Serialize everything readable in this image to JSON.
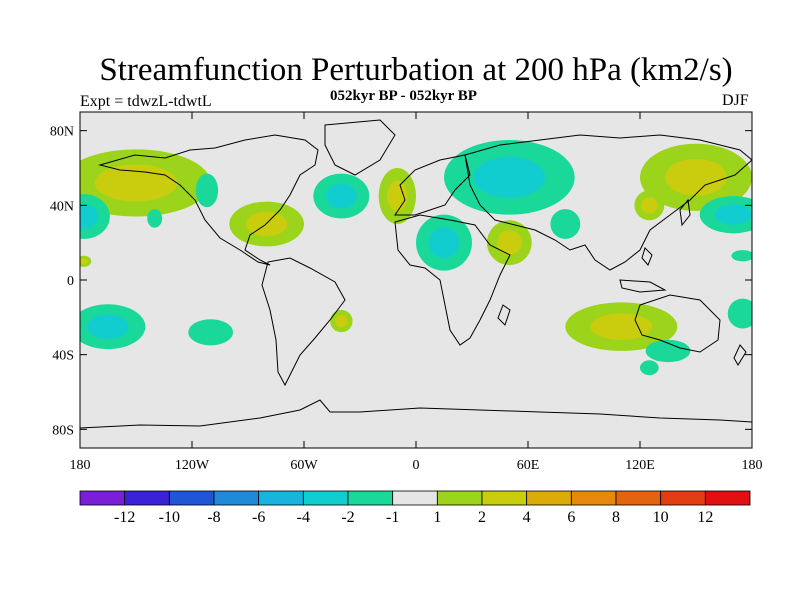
{
  "title": "Streamfunction Perturbation at 200 hPa (km2/s)",
  "subtitle": "052kyr BP - 052kyr BP",
  "left_label": "Expt = tdwzL-tdwtL",
  "right_label": "DJF",
  "map": {
    "projection": "cylindrical-equidistant",
    "lon_range": [
      -180,
      180
    ],
    "lat_range": [
      -90,
      90
    ],
    "background_color": "#e6e6e6",
    "x_ticks": [
      {
        "lon": -180,
        "label": "180"
      },
      {
        "lon": -120,
        "label": "120W"
      },
      {
        "lon": -60,
        "label": "60W"
      },
      {
        "lon": 0,
        "label": "0"
      },
      {
        "lon": 60,
        "label": "60E"
      },
      {
        "lon": 120,
        "label": "120E"
      },
      {
        "lon": 180,
        "label": "180"
      }
    ],
    "y_ticks": [
      {
        "lat": 80,
        "label": "80N"
      },
      {
        "lat": 40,
        "label": "40N"
      },
      {
        "lat": 0,
        "label": "0"
      },
      {
        "lat": -40,
        "label": "40S"
      },
      {
        "lat": -80,
        "label": "80S"
      }
    ]
  },
  "colorbar": {
    "colors": [
      "#7a1fd6",
      "#3a22d6",
      "#1f56d6",
      "#1e8ad9",
      "#17b4dd",
      "#12cdd0",
      "#19d89a",
      "#e6e6e6",
      "#9bd41a",
      "#c9cd0e",
      "#dcab0a",
      "#e5880b",
      "#e3640f",
      "#e13c12",
      "#e01010"
    ],
    "labels": [
      "-12",
      "-10",
      "-8",
      "-6",
      "-4",
      "-2",
      "-1",
      "1",
      "2",
      "4",
      "6",
      "8",
      "10",
      "12"
    ]
  },
  "chart_data": {
    "type": "heatmap",
    "variable": "Streamfunction Perturbation at 200 hPa (km2/s)",
    "levels": [
      -12,
      -10,
      -8,
      -6,
      -4,
      -2,
      -1,
      1,
      2,
      4,
      6,
      8,
      10,
      12
    ],
    "anomaly_regions": [
      {
        "name": "north-pacific-positive",
        "lon": -150,
        "lat": 52,
        "rx": 40,
        "ry": 18,
        "level": 4,
        "peak": 4
      },
      {
        "name": "northwest-pacific-positive",
        "lon": 150,
        "lat": 55,
        "rx": 30,
        "ry": 18,
        "level": 4,
        "peak": 4
      },
      {
        "name": "gulf-of-mexico-positive",
        "lon": -80,
        "lat": 30,
        "rx": 20,
        "ry": 12,
        "level": 4,
        "peak": 4
      },
      {
        "name": "west-pacific-negative",
        "lon": -178,
        "lat": 34,
        "rx": 14,
        "ry": 12,
        "level": -2,
        "peak": -2
      },
      {
        "name": "east-pacific-negative",
        "lon": -112,
        "lat": 48,
        "rx": 6,
        "ry": 9,
        "level": -2,
        "peak": -1
      },
      {
        "name": "north-atlantic-negative",
        "lon": -40,
        "lat": 45,
        "rx": 15,
        "ry": 12,
        "level": -2,
        "peak": -2
      },
      {
        "name": "western-europe-positive",
        "lon": -10,
        "lat": 45,
        "rx": 10,
        "ry": 15,
        "level": 2,
        "peak": 2
      },
      {
        "name": "eurasia-negative",
        "lon": 50,
        "lat": 55,
        "rx": 35,
        "ry": 20,
        "level": -2,
        "peak": -2
      },
      {
        "name": "africa-negative",
        "lon": 15,
        "lat": 20,
        "rx": 15,
        "ry": 15,
        "level": -2,
        "peak": -2
      },
      {
        "name": "arabia-positive",
        "lon": 50,
        "lat": 20,
        "rx": 12,
        "ry": 12,
        "level": 4,
        "peak": 4
      },
      {
        "name": "central-asia-negative",
        "lon": 80,
        "lat": 30,
        "rx": 8,
        "ry": 8,
        "level": -2,
        "peak": -1
      },
      {
        "name": "east-asia-positive",
        "lon": 125,
        "lat": 40,
        "rx": 8,
        "ry": 8,
        "level": 2,
        "peak": 2
      },
      {
        "name": "north-pacific-east-negative",
        "lon": -140,
        "lat": 33,
        "rx": 4,
        "ry": 5,
        "level": -2,
        "peak": -1
      },
      {
        "name": "east-pacific-equator-positive",
        "lon": -178,
        "lat": 10,
        "rx": 4,
        "ry": 3,
        "level": 2,
        "peak": 2
      },
      {
        "name": "south-pacific-negative",
        "lon": -165,
        "lat": -25,
        "rx": 20,
        "ry": 12,
        "level": -2,
        "peak": -2
      },
      {
        "name": "south-pacific-central-negative",
        "lon": -110,
        "lat": -28,
        "rx": 12,
        "ry": 7,
        "level": -2,
        "peak": -1
      },
      {
        "name": "south-atlantic-positive",
        "lon": -40,
        "lat": -22,
        "rx": 6,
        "ry": 6,
        "level": 2,
        "peak": 2
      },
      {
        "name": "australia-positive",
        "lon": 110,
        "lat": -25,
        "rx": 30,
        "ry": 13,
        "level": 2,
        "peak": 2
      },
      {
        "name": "australia-south-negative",
        "lon": 135,
        "lat": -38,
        "rx": 12,
        "ry": 6,
        "level": -2,
        "peak": -1
      },
      {
        "name": "tasman-negative",
        "lon": 125,
        "lat": -47,
        "rx": 5,
        "ry": 4,
        "level": -2,
        "peak": -1
      },
      {
        "name": "east-of-japan-negative",
        "lon": 170,
        "lat": 35,
        "rx": 18,
        "ry": 10,
        "level": -2,
        "peak": -2
      },
      {
        "name": "dateline-equator-negative",
        "lon": 175,
        "lat": 13,
        "rx": 6,
        "ry": 3,
        "level": -2,
        "peak": -1
      },
      {
        "name": "south-pacific-west-negative",
        "lon": 175,
        "lat": -18,
        "rx": 8,
        "ry": 8,
        "level": -2,
        "peak": -1
      }
    ]
  }
}
